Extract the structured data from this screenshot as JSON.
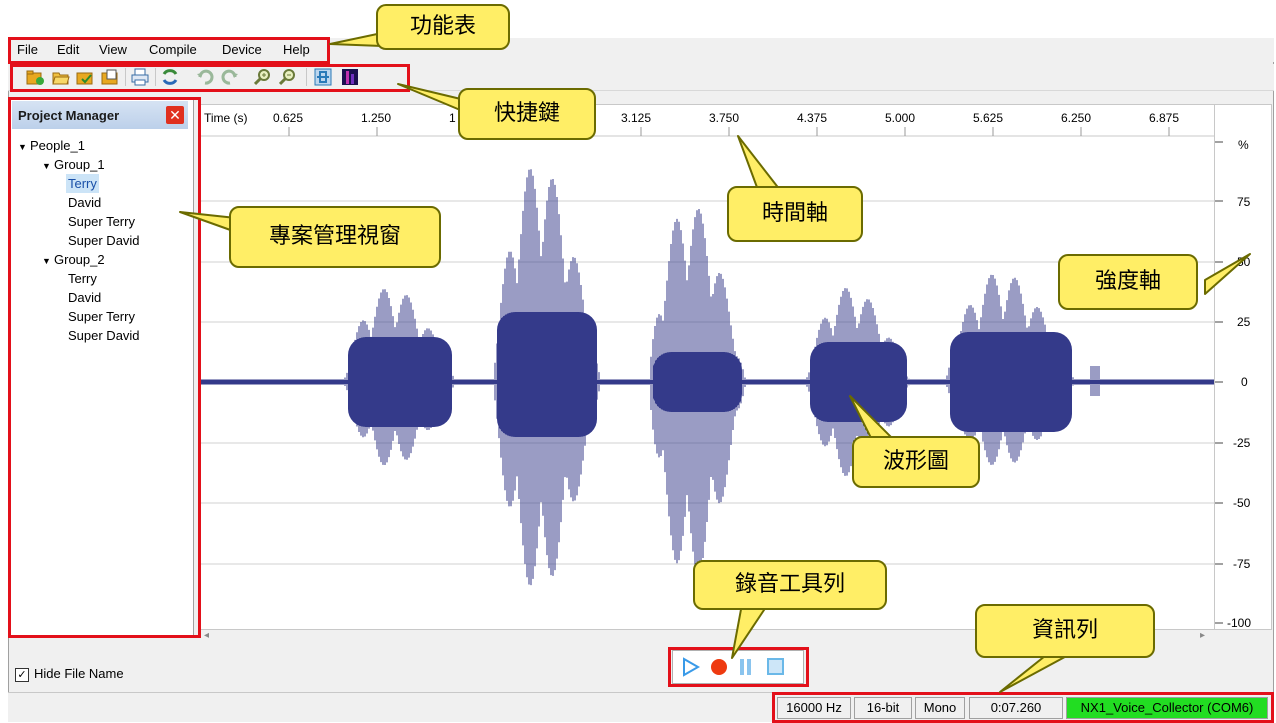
{
  "menu": {
    "items": [
      "File",
      "Edit",
      "View",
      "Compile",
      "Device",
      "Help"
    ]
  },
  "toolbar": {
    "buttons": [
      {
        "icon": "new-project-icon",
        "color": "#e8a820"
      },
      {
        "icon": "open-folder-icon",
        "color": "#e8a820"
      },
      {
        "icon": "save-icon",
        "color": "#e8a820"
      },
      {
        "icon": "save-as-icon",
        "color": "#e8a820"
      },
      {
        "icon": "print-icon",
        "color": "#3a6ea5"
      },
      {
        "icon": "refresh-icon",
        "color": "#3a8a3a"
      },
      {
        "icon": "undo-icon",
        "color": "#9ab89a"
      },
      {
        "icon": "redo-icon",
        "color": "#9ab89a"
      },
      {
        "icon": "zoom-in-icon",
        "color": "#6a7a3a"
      },
      {
        "icon": "zoom-out-icon",
        "color": "#6a7a3a"
      },
      {
        "icon": "waveform-view-icon",
        "color": "#2a7ab8"
      },
      {
        "icon": "spectrogram-view-icon",
        "color": "#6a2a8a"
      }
    ]
  },
  "project_manager": {
    "title": "Project Manager",
    "close_icon": "close-icon",
    "tree": {
      "root": "People_1",
      "groups": [
        {
          "name": "Group_1",
          "items": [
            "Terry",
            "David",
            "Super Terry",
            "Super David"
          ],
          "selected": "Terry"
        }
      ],
      "root2_group": {
        "name": "Group_2",
        "items": [
          "Terry",
          "David",
          "Super Terry",
          "Super David"
        ]
      }
    },
    "hide_file_name": {
      "label": "Hide File Name",
      "checked": true,
      "mark": "✓"
    }
  },
  "waveform": {
    "time_axis_label": "Time (s)",
    "time_ticks": [
      "0.625",
      "1.250",
      "1",
      "3.125",
      "3.750",
      "4.375",
      "5.000",
      "5.625",
      "6.250",
      "6.875"
    ],
    "amplitude_unit": "%",
    "amplitude_ticks": [
      "75",
      "50",
      "25",
      "0",
      "-25",
      "-50",
      "-75",
      "-100"
    ],
    "wave_color": "#343a8a"
  },
  "recording_toolbar": {
    "buttons": [
      {
        "icon": "play-icon",
        "color": "#3a9ae8"
      },
      {
        "icon": "record-icon",
        "color": "#ee3a10"
      },
      {
        "icon": "pause-icon",
        "color": "#6ab8e8"
      },
      {
        "icon": "stop-icon",
        "color": "#6ab8e8"
      }
    ]
  },
  "status": {
    "sample_rate": "16000 Hz",
    "bit_depth": "16-bit",
    "channels": "Mono",
    "duration": "0:07.260",
    "device": "NX1_Voice_Collector (COM6)",
    "device_color": "#22dd22"
  },
  "annotations": {
    "menu": "功能表",
    "shortcuts": "快捷鍵",
    "project_manager": "專案管理視窗",
    "time_axis": "時間軸",
    "intensity_axis": "強度軸",
    "waveform": "波形圖",
    "recording_toolbar": "錄音工具列",
    "info_bar": "資訊列"
  }
}
